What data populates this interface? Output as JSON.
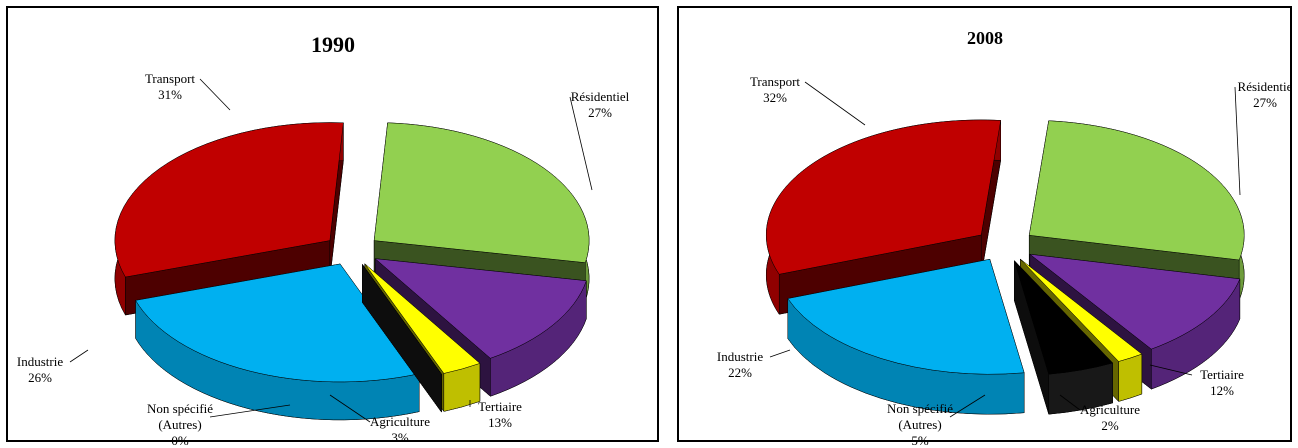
{
  "chart_data": [
    {
      "type": "pie3d",
      "title": "1990",
      "categories": [
        "Transport",
        "Résidentiel",
        "Tertiaire",
        "Agriculture",
        "Non spécifié (Autres)",
        "Industrie"
      ],
      "values": [
        31,
        27,
        13,
        3,
        0,
        26
      ],
      "value_labels": [
        "31%",
        "27%",
        "13%",
        "3%",
        "0%",
        "26%"
      ],
      "colors": [
        "#c00000",
        "#92d050",
        "#7030a0",
        "#ffff00",
        "#000000",
        "#00b0f0"
      ]
    },
    {
      "type": "pie3d",
      "title": "2008",
      "categories": [
        "Transport",
        "Résidentie",
        "Tertiaire",
        "Agriculture",
        "Non spécifié (Autres)",
        "Industrie"
      ],
      "values": [
        32,
        27,
        12,
        2,
        5,
        22
      ],
      "value_labels": [
        "32%",
        "27%",
        "12%",
        "2%",
        "5%",
        "22%"
      ],
      "colors": [
        "#c00000",
        "#92d050",
        "#7030a0",
        "#ffff00",
        "#000000",
        "#00b0f0"
      ]
    }
  ]
}
